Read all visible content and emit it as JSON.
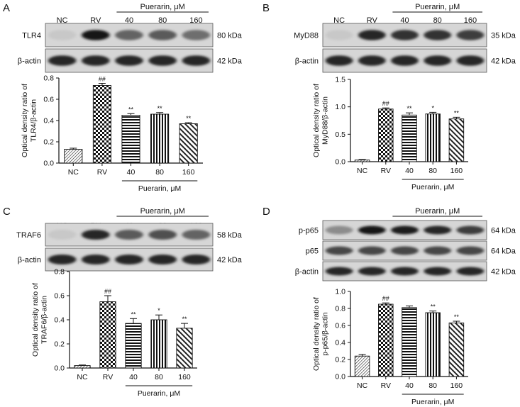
{
  "panels": [
    {
      "letter": "A",
      "lanes": [
        "NC",
        "RV",
        "40",
        "80",
        "160"
      ],
      "treatment": "Puerarin, μM",
      "blots": [
        {
          "name": "TLR4",
          "kda": "80 kDa",
          "intensity": [
            0.05,
            0.95,
            0.55,
            0.6,
            0.5
          ]
        },
        {
          "name": "β-actin",
          "kda": "42 kDa",
          "intensity": [
            0.85,
            0.85,
            0.85,
            0.85,
            0.85
          ]
        }
      ],
      "chart_data": {
        "type": "bar",
        "categories": [
          "NC",
          "RV",
          "40",
          "80",
          "160"
        ],
        "values": [
          0.13,
          0.73,
          0.45,
          0.46,
          0.37
        ],
        "errors": [
          0.01,
          0.02,
          0.015,
          0.015,
          0.01
        ],
        "annotations": [
          "",
          "##",
          "**",
          "**",
          "**"
        ],
        "patterns": [
          "diag-fine",
          "checker",
          "hlines",
          "vlines",
          "diag-wide"
        ],
        "ylabel": "Optical density ratio of TLR4/β-actin",
        "ylim": [
          0,
          0.8
        ],
        "yticks": [
          "0.0",
          "0.2",
          "0.4",
          "0.6",
          "0.8"
        ],
        "xlabel": "Puerarin, μM"
      }
    },
    {
      "letter": "B",
      "lanes": [
        "NC",
        "RV",
        "40",
        "80",
        "160"
      ],
      "treatment": "Puerarin, μM",
      "blots": [
        {
          "name": "MyD88",
          "kda": "35 kDa",
          "intensity": [
            0.05,
            0.85,
            0.8,
            0.8,
            0.75
          ]
        },
        {
          "name": "β-actin",
          "kda": "42 kDa",
          "intensity": [
            0.85,
            0.85,
            0.85,
            0.85,
            0.85
          ]
        }
      ],
      "chart_data": {
        "type": "bar",
        "categories": [
          "NC",
          "RV",
          "40",
          "80",
          "160"
        ],
        "values": [
          0.03,
          0.96,
          0.85,
          0.87,
          0.78
        ],
        "errors": [
          0.01,
          0.02,
          0.04,
          0.03,
          0.03
        ],
        "annotations": [
          "",
          "##",
          "**",
          "*",
          "**"
        ],
        "patterns": [
          "diag-fine",
          "checker",
          "hlines",
          "vlines",
          "diag-wide"
        ],
        "ylabel": "Optical density ratio of MyD88/β-actin",
        "ylim": [
          0,
          1.5
        ],
        "yticks": [
          "0.0",
          "0.5",
          "1.0",
          "1.5"
        ],
        "xlabel": "Puerarin, μM"
      }
    },
    {
      "letter": "C",
      "lanes": [
        "NC",
        "RV",
        "40",
        "80",
        "160"
      ],
      "treatment": "Puerarin, μM",
      "blots": [
        {
          "name": "TRAF6",
          "kda": "58 kDa",
          "intensity": [
            0.05,
            0.85,
            0.6,
            0.65,
            0.55
          ]
        },
        {
          "name": "β-actin",
          "kda": "42 kDa",
          "intensity": [
            0.85,
            0.85,
            0.85,
            0.85,
            0.85
          ]
        }
      ],
      "chart_data": {
        "type": "bar",
        "categories": [
          "NC",
          "RV",
          "40",
          "80",
          "160"
        ],
        "values": [
          0.02,
          0.55,
          0.37,
          0.4,
          0.33
        ],
        "errors": [
          0.005,
          0.05,
          0.04,
          0.04,
          0.04
        ],
        "annotations": [
          "",
          "##",
          "**",
          "*",
          "**"
        ],
        "patterns": [
          "diag-fine",
          "checker",
          "hlines",
          "vlines",
          "diag-wide"
        ],
        "ylabel": "Optical density ratio of TRAF6/β-actin",
        "ylim": [
          0,
          0.8
        ],
        "yticks": [
          "0.0",
          "0.2",
          "0.4",
          "0.6",
          "0.8"
        ],
        "xlabel": "Puerarin, μM"
      }
    },
    {
      "letter": "D",
      "lanes": [
        "NC",
        "RV",
        "40",
        "80",
        "160"
      ],
      "treatment": "Puerarin, μM",
      "blots": [
        {
          "name": "p-p65",
          "kda": "64 kDa",
          "intensity": [
            0.35,
            0.95,
            0.9,
            0.85,
            0.75
          ]
        },
        {
          "name": "p65",
          "kda": "64 kDa",
          "intensity": [
            0.7,
            0.7,
            0.7,
            0.7,
            0.7
          ]
        },
        {
          "name": "β-actin",
          "kda": "42 kDa",
          "intensity": [
            0.85,
            0.85,
            0.85,
            0.85,
            0.85
          ]
        }
      ],
      "chart_data": {
        "type": "bar",
        "categories": [
          "NC",
          "RV",
          "40",
          "80",
          "160"
        ],
        "values": [
          0.24,
          0.85,
          0.81,
          0.75,
          0.63
        ],
        "errors": [
          0.02,
          0.015,
          0.02,
          0.02,
          0.02
        ],
        "annotations": [
          "",
          "##",
          "",
          "**",
          "**"
        ],
        "patterns": [
          "diag-fine",
          "checker",
          "hlines",
          "vlines",
          "diag-wide"
        ],
        "ylabel": "Optical density ratio of p-p65/β-actin",
        "ylim": [
          0,
          1.0
        ],
        "yticks": [
          "0.0",
          "0.2",
          "0.4",
          "0.6",
          "0.8",
          "1.0"
        ],
        "xlabel": "Puerarin, μM"
      }
    }
  ]
}
